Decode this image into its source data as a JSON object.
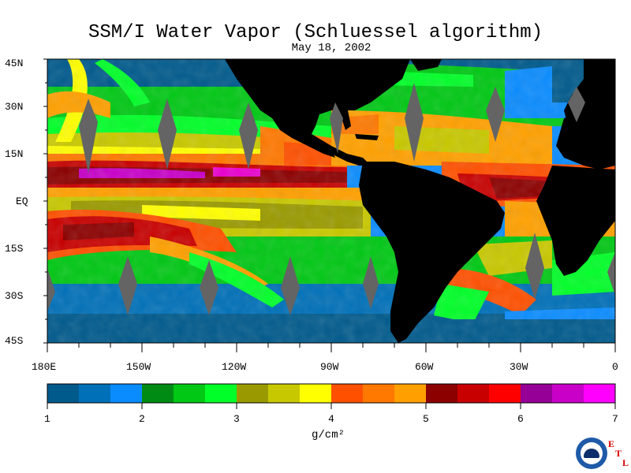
{
  "title": "SSM/I Water Vapor (Schluessel algorithm)",
  "date": "May 18, 2002",
  "lat_labels": [
    "45N",
    "30N",
    "15N",
    "EQ",
    "15S",
    "30S",
    "45S"
  ],
  "lon_labels": [
    "180E",
    "150W",
    "120W",
    "90W",
    "60W",
    "30W",
    "0"
  ],
  "colorbar": {
    "ticks": [
      "1",
      "2",
      "3",
      "4",
      "5",
      "6",
      "7"
    ],
    "unit": "g/cm²",
    "colors": [
      "#005a8c",
      "#0070b8",
      "#0a8cff",
      "#008c14",
      "#00c814",
      "#00ff28",
      "#9a9a00",
      "#c8c800",
      "#ffff00",
      "#ff5000",
      "#ff7800",
      "#ffa000",
      "#8c0000",
      "#c80000",
      "#ff0000",
      "#960096",
      "#c800c8",
      "#ff00ff"
    ],
    "min": 1,
    "max": 7
  },
  "logo": {
    "label": "NOAA",
    "etl_letters": [
      "E",
      "T",
      "L"
    ]
  },
  "colors": {
    "land": "#000000",
    "no_data": "#646464",
    "background": "#ffffff"
  }
}
